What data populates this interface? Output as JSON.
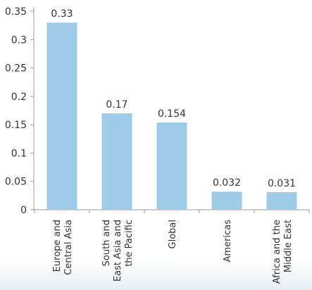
{
  "chart_data": {
    "type": "bar",
    "categories": [
      [
        "Europe and",
        "Central Asia"
      ],
      [
        "South and",
        "East Asia and",
        "the Pacific"
      ],
      [
        "Global"
      ],
      [
        "Americas"
      ],
      [
        "Africa and the",
        "Middle East"
      ]
    ],
    "values": [
      0.33,
      0.17,
      0.154,
      0.032,
      0.031
    ],
    "value_labels": [
      "0.33",
      "0.17",
      "0.154",
      "0.032",
      "0.031"
    ],
    "yticks": [
      "0",
      "0.05",
      "0.1",
      "0.15",
      "0.2",
      "0.25",
      "0.3",
      "0.35"
    ],
    "ytick_values": [
      0,
      0.05,
      0.1,
      0.15,
      0.2,
      0.25,
      0.3,
      0.35
    ],
    "ylim": [
      0,
      0.35
    ],
    "title": "",
    "xlabel": "",
    "ylabel": "",
    "grid": false,
    "legend": "none",
    "bar_color": "#9dcbe8",
    "axis_color": "#999999",
    "text_color": "#333333",
    "background": "#ffffff"
  }
}
